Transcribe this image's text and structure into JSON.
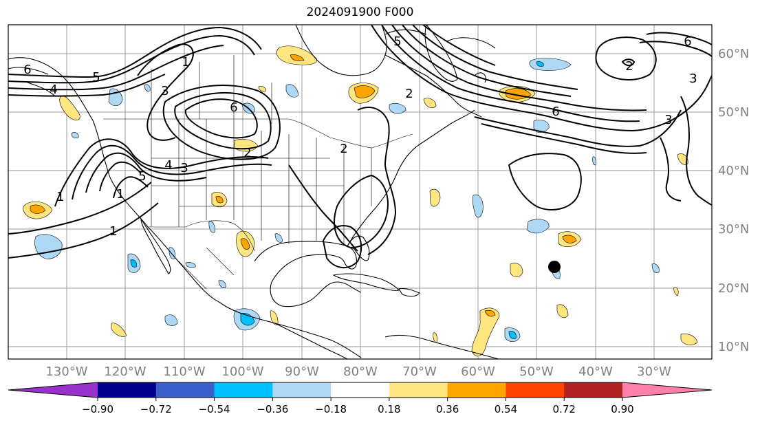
{
  "title": "2024091900 F000",
  "lon_labels": [
    "130°W",
    "120°W",
    "110°W",
    "100°W",
    "90°W",
    "80°W",
    "70°W",
    "60°W",
    "50°W",
    "40°W",
    "30°W"
  ],
  "lat_labels": [
    "60°N",
    "50°N",
    "40°N",
    "30°N",
    "20°N",
    "10°N"
  ],
  "colorbar": {
    "tick_labels": [
      "−0.90",
      "−0.72",
      "−0.54",
      "−0.36",
      "−0.18",
      "0.18",
      "0.36",
      "0.54",
      "0.72",
      "0.90"
    ],
    "colors": [
      "#9932cc",
      "#00008b",
      "#3a5fcd",
      "#00bfff",
      "#add8f6",
      "#ffffff",
      "#ffe680",
      "#ffa500",
      "#ff4500",
      "#b22222",
      "#ff80aa"
    ]
  },
  "contour_labels": [
    "1",
    "2",
    "3",
    "4",
    "5",
    "6",
    "1",
    "2",
    "3",
    "4",
    "5",
    "6",
    "1",
    "2",
    "3",
    "5",
    "6",
    "1",
    "2",
    "3",
    "6"
  ],
  "colors": {
    "grid": "#999999",
    "axis_label": "#808080",
    "contour": "#000000",
    "coast": "#000000"
  }
}
